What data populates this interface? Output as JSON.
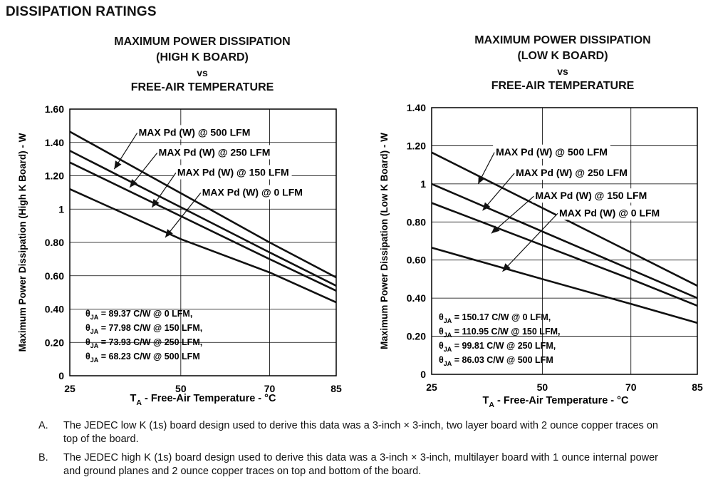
{
  "section_title": "DISSIPATION RATINGS",
  "chart_data": [
    {
      "type": "line",
      "title_lines": [
        "MAXIMUM POWER DISSIPATION",
        "(HIGH K BOARD)",
        "vs",
        "FREE-AIR TEMPERATURE"
      ],
      "xlabel_main": "T",
      "xlabel_sub": "A",
      "xlabel_rest": " - Free-Air Temperature - °C",
      "ylabel": "Maximum Power Dissipation (High K Board) - W",
      "xlim": [
        25,
        85
      ],
      "ylim": [
        0,
        1.6
      ],
      "x_ticks": [
        "25",
        "50",
        "70",
        "85"
      ],
      "x_tick_values": [
        25,
        50,
        70,
        85
      ],
      "y_ticks": [
        "0",
        "0.20",
        "0.40",
        "0.60",
        "0.80",
        "1",
        "1.20",
        "1.40",
        "1.60"
      ],
      "y_tick_values": [
        0,
        0.2,
        0.4,
        0.6,
        0.8,
        1.0,
        1.2,
        1.4,
        1.6
      ],
      "grid": true,
      "series": [
        {
          "name": "MAX Pd (W) @ 500 LFM",
          "x": [
            25,
            70,
            85
          ],
          "y": [
            1.465,
            0.8,
            0.59
          ],
          "label_at": [
            40.5,
            1.44
          ],
          "arrow_to": [
            35,
            1.24
          ]
        },
        {
          "name": "MAX Pd (W) @ 250 LFM",
          "x": [
            25,
            70,
            85
          ],
          "y": [
            1.35,
            0.74,
            0.54
          ],
          "label_at": [
            45,
            1.32
          ],
          "arrow_to": [
            38.5,
            1.13
          ]
        },
        {
          "name": "MAX Pd (W) @ 150 LFM",
          "x": [
            25,
            70,
            85
          ],
          "y": [
            1.28,
            0.7,
            0.51
          ],
          "label_at": [
            49.2,
            1.2
          ],
          "arrow_to": [
            43.5,
            1.01
          ]
        },
        {
          "name": "MAX Pd (W) @ 0 LFM",
          "x": [
            25,
            50,
            70,
            85
          ],
          "y": [
            1.12,
            0.82,
            0.62,
            0.44
          ],
          "label_at": [
            54.8,
            1.08
          ],
          "arrow_to": [
            46.5,
            0.83
          ]
        }
      ],
      "annotations": [
        {
          "theta": "θ",
          "sub": "JA",
          "text": " = 89.37 C/W @ 0 LFM,"
        },
        {
          "theta": "θ",
          "sub": "JA",
          "text": " = 77.98 C/W @ 150 LFM,"
        },
        {
          "theta": "θ",
          "sub": "JA",
          "text": " = 73.93 C/W @ 250 LFM,"
        },
        {
          "theta": "θ",
          "sub": "JA",
          "text": " = 68.23 C/W @ 500 LFM"
        }
      ]
    },
    {
      "type": "line",
      "title_lines": [
        "MAXIMUM POWER DISSIPATION",
        "(LOW K BOARD)",
        "vs",
        "FREE-AIR TEMPERATURE"
      ],
      "xlabel_main": "T",
      "xlabel_sub": "A",
      "xlabel_rest": " - Free-Air Temperature - °C",
      "ylabel": "Maximum Power Dissipation (Low K Board) - W",
      "xlim": [
        25,
        85
      ],
      "ylim": [
        0,
        1.4
      ],
      "x_ticks": [
        "25",
        "50",
        "70",
        "85"
      ],
      "x_tick_values": [
        25,
        50,
        70,
        85
      ],
      "y_ticks": [
        "0",
        "0.20",
        "0.40",
        "0.60",
        "0.80",
        "1",
        "1.20",
        "1.40"
      ],
      "y_tick_values": [
        0,
        0.2,
        0.4,
        0.6,
        0.8,
        1.0,
        1.2,
        1.4
      ],
      "grid": true,
      "series": [
        {
          "name": "MAX Pd (W) @ 500 LFM",
          "x": [
            25,
            70,
            85
          ],
          "y": [
            1.165,
            0.64,
            0.465
          ],
          "label_at": [
            39.5,
            1.15
          ],
          "arrow_to": [
            35.5,
            1.0
          ]
        },
        {
          "name": "MAX Pd (W) @ 250 LFM",
          "x": [
            25,
            70,
            85
          ],
          "y": [
            1.0,
            0.55,
            0.4
          ],
          "label_at": [
            44,
            1.04
          ],
          "arrow_to": [
            36.5,
            0.86
          ]
        },
        {
          "name": "MAX Pd (W) @ 150 LFM",
          "x": [
            25,
            70,
            85
          ],
          "y": [
            0.9,
            0.5,
            0.36
          ],
          "label_at": [
            48.4,
            0.92
          ],
          "arrow_to": [
            38.5,
            0.74
          ]
        },
        {
          "name": "MAX Pd (W) @ 0 LFM",
          "x": [
            25,
            50,
            70,
            85
          ],
          "y": [
            0.665,
            0.5,
            0.37,
            0.27
          ],
          "label_at": [
            53.8,
            0.83
          ],
          "arrow_to": [
            41,
            0.54
          ]
        }
      ],
      "annotations": [
        {
          "theta": "θ",
          "sub": "JA",
          "text": " = 150.17 C/W @ 0 LFM,"
        },
        {
          "theta": "θ",
          "sub": "JA",
          "text": " = 110.95 C/W @ 150 LFM,"
        },
        {
          "theta": "θ",
          "sub": "JA",
          "text": " = 99.81 C/W @ 250 LFM,"
        },
        {
          "theta": "θ",
          "sub": "JA",
          "text": " = 86.03 C/W @ 500 LFM"
        }
      ]
    }
  ],
  "notes": [
    {
      "letter": "A.",
      "text": "The JEDEC low K (1s) board design used to derive this data was a 3-inch × 3-inch, two layer board with 2 ounce copper traces on top of the board."
    },
    {
      "letter": "B.",
      "text": "The JEDEC high K (1s) board design used to derive this data was a 3-inch × 3-inch, multilayer board with 1 ounce internal power and ground planes and 2 ounce copper traces on top and bottom of the board."
    }
  ]
}
